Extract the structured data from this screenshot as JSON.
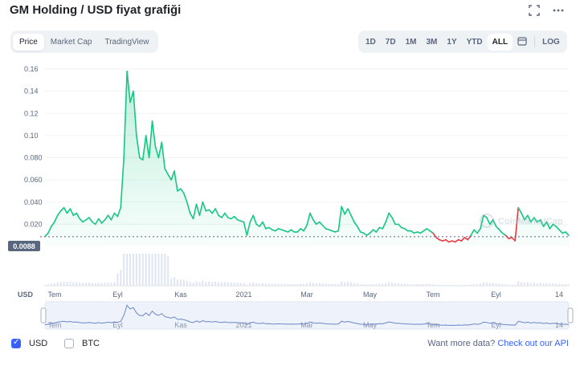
{
  "title": "GM Holding / USD fiyat grafiği",
  "header_icons": [
    "fullscreen-icon",
    "more-icon"
  ],
  "tabs": [
    "Price",
    "Market Cap",
    "TradingView"
  ],
  "active_tab": "Price",
  "ranges": [
    "1D",
    "7D",
    "1M",
    "3M",
    "1Y",
    "YTD",
    "ALL"
  ],
  "active_range": "ALL",
  "log_label": "LOG",
  "watermark": "CoinMarketCap",
  "current_price_label": "0.0088",
  "currency_label": "USD",
  "footer": {
    "usd_label": "USD",
    "btc_label": "BTC",
    "more_text": "Want more data?",
    "api_link": "Check out our API"
  },
  "colors": {
    "up": "#16c784",
    "down": "#ea3943",
    "accent": "#3861fb"
  },
  "chart_data": {
    "type": "area",
    "ylim": [
      0,
      0.165
    ],
    "yticks": [
      0.02,
      0.04,
      0.06,
      0.08,
      0.1,
      0.12,
      0.14,
      0.16
    ],
    "ytick_labels": [
      "0.020",
      "0.040",
      "0.060",
      "0.080",
      "0.10",
      "0.12",
      "0.14",
      "0.16"
    ],
    "xtick_labels": [
      "Tem",
      "Eyl",
      "Kas",
      "2021",
      "Mar",
      "May",
      "Tem",
      "Eyl",
      "14"
    ],
    "nav_tick_labels": [
      "Tem",
      "Eyl",
      "Kas",
      "2021",
      "Mar",
      "May",
      "Tem",
      "Eyl",
      "14"
    ],
    "series": [
      {
        "values": [
          0.009,
          0.012,
          0.018,
          0.022,
          0.028,
          0.032,
          0.035,
          0.03,
          0.034,
          0.028,
          0.03,
          0.025,
          0.022,
          0.024,
          0.026,
          0.022,
          0.02,
          0.025,
          0.021,
          0.024,
          0.028,
          0.024,
          0.03,
          0.027,
          0.035,
          0.08,
          0.158,
          0.13,
          0.14,
          0.1,
          0.08,
          0.078,
          0.1,
          0.08,
          0.113,
          0.09,
          0.08,
          0.094,
          0.07,
          0.065,
          0.06,
          0.068,
          0.05,
          0.052,
          0.048,
          0.04,
          0.03,
          0.025,
          0.038,
          0.028,
          0.04,
          0.032,
          0.033,
          0.03,
          0.034,
          0.028,
          0.026,
          0.03,
          0.026,
          0.025,
          0.027,
          0.024,
          0.023,
          0.022,
          0.01,
          0.022,
          0.028,
          0.02,
          0.018,
          0.022,
          0.016,
          0.017,
          0.015,
          0.014,
          0.016,
          0.015,
          0.014,
          0.013,
          0.015,
          0.013,
          0.013,
          0.016,
          0.014,
          0.019,
          0.03,
          0.024,
          0.02,
          0.022,
          0.019,
          0.016,
          0.015,
          0.014,
          0.013,
          0.014,
          0.036,
          0.029,
          0.034,
          0.028,
          0.022,
          0.018,
          0.013,
          0.012,
          0.01,
          0.012,
          0.015,
          0.013,
          0.017,
          0.016,
          0.022,
          0.03,
          0.026,
          0.02,
          0.02,
          0.017,
          0.016,
          0.014,
          0.014,
          0.012,
          0.013,
          0.012,
          0.014,
          0.016,
          0.014,
          0.012,
          0.008,
          0.006,
          0.005,
          0.006,
          0.004,
          0.005,
          0.004,
          0.006,
          0.005,
          0.008,
          0.006,
          0.01,
          0.015,
          0.012,
          0.016,
          0.028,
          0.026,
          0.02,
          0.024,
          0.018,
          0.015,
          0.012,
          0.01,
          0.007,
          0.008,
          0.005,
          0.035,
          0.03,
          0.024,
          0.028,
          0.022,
          0.026,
          0.022,
          0.024,
          0.018,
          0.022,
          0.016,
          0.02,
          0.018,
          0.015,
          0.012,
          0.013,
          0.01
        ]
      }
    ]
  }
}
